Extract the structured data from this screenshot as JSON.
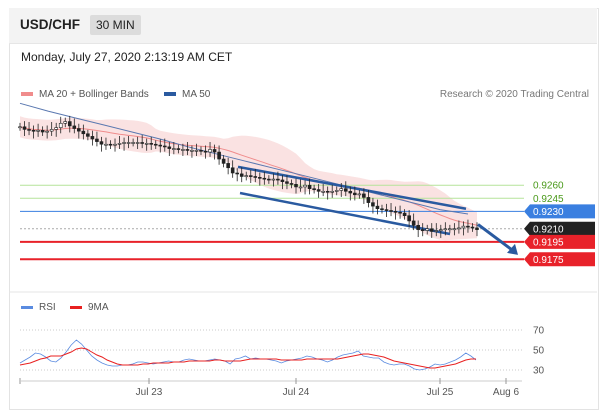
{
  "header": {
    "pair": "USD/CHF",
    "timeframe": "30 MIN"
  },
  "datetime": "Monday, July 27, 2020 2:13:19 AM CET",
  "legend": {
    "bollinger": "MA 20 + Bollinger Bands",
    "ma50": "MA 50",
    "credit": "Research © 2020 Trading Central"
  },
  "rsi_legend": {
    "rsi": "RSI",
    "ma9": "9MA"
  },
  "colors": {
    "bollinger": "#f08c8c",
    "ma50": "#2a5aa0",
    "resistance": "#4a9a1a",
    "pivot": "#3a7fe0",
    "support": "#e8222a",
    "current": "#222222",
    "rsi": "#5a8be0",
    "rsi_ma": "#e82020"
  },
  "chart_data": [
    {
      "type": "candlestick",
      "title": "USD/CHF 30 MIN",
      "x_ticks": [
        "Jul 23",
        "Jul 24",
        "Jul 25",
        "Aug 6"
      ],
      "levels": [
        {
          "label": "0.9260",
          "value": 0.926,
          "kind": "resistance"
        },
        {
          "label": "0.9245",
          "value": 0.9245,
          "kind": "resistance"
        },
        {
          "label": "0.9230",
          "value": 0.923,
          "kind": "pivot"
        },
        {
          "label": "0.9210",
          "value": 0.921,
          "kind": "current"
        },
        {
          "label": "0.9195",
          "value": 0.9195,
          "kind": "support"
        },
        {
          "label": "0.9175",
          "value": 0.9175,
          "kind": "support"
        }
      ],
      "ylim": [
        0.9165,
        0.9352
      ],
      "closes": [
        0.9327,
        0.9324,
        0.9323,
        0.9322,
        0.9323,
        0.9321,
        0.9322,
        0.9324,
        0.9326,
        0.9331,
        0.9333,
        0.9328,
        0.9325,
        0.9322,
        0.9319,
        0.9316,
        0.9313,
        0.931,
        0.9307,
        0.9307,
        0.9306,
        0.9307,
        0.9308,
        0.9309,
        0.9309,
        0.9309,
        0.9309,
        0.9308,
        0.9308,
        0.9307,
        0.9306,
        0.9305,
        0.9304,
        0.9302,
        0.9302,
        0.9301,
        0.9301,
        0.93,
        0.93,
        0.93,
        0.9299,
        0.9298,
        0.9301,
        0.9298,
        0.929,
        0.9285,
        0.928,
        0.9274,
        0.9273,
        0.927,
        0.9271,
        0.927,
        0.9269,
        0.9268,
        0.9267,
        0.9266,
        0.9267,
        0.9266,
        0.9264,
        0.9262,
        0.9261,
        0.9258,
        0.9258,
        0.926,
        0.9256,
        0.9255,
        0.9253,
        0.9253,
        0.9252,
        0.9253,
        0.9254,
        0.9256,
        0.9253,
        0.9251,
        0.9249,
        0.925,
        0.9246,
        0.924,
        0.9236,
        0.9233,
        0.9232,
        0.9231,
        0.923,
        0.9229,
        0.9228,
        0.9225,
        0.9219,
        0.9214,
        0.9209,
        0.9208,
        0.921,
        0.9207,
        0.9208,
        0.9209,
        0.921,
        0.921,
        0.921,
        0.9211,
        0.9213,
        0.9212,
        0.9211,
        0.9209
      ],
      "ma50": [
        0.9354,
        0.9345,
        0.9337,
        0.9329,
        0.9321,
        0.9313,
        0.9304,
        0.9296,
        0.9288,
        0.928,
        0.9272,
        0.9264,
        0.9256,
        0.9248,
        0.924,
        0.9232,
        0.9227
      ],
      "channel": {
        "upper": [
          0.9281,
          0.9233
        ],
        "lower": [
          0.9251,
          0.9204
        ]
      },
      "forecast_arrow": [
        0.9215,
        0.918
      ]
    },
    {
      "type": "line",
      "title": "RSI",
      "series": [
        {
          "name": "RSI",
          "values": [
            37,
            40,
            43,
            47,
            46,
            43,
            39,
            38,
            42,
            48,
            55,
            60,
            56,
            50,
            44,
            40,
            37,
            35,
            34,
            34,
            35,
            35,
            36,
            38,
            38,
            37,
            36,
            37,
            38,
            39,
            38,
            38,
            40,
            41,
            40,
            39,
            39,
            40,
            41,
            40,
            39,
            36,
            41,
            42,
            44,
            41,
            42,
            41,
            41,
            40,
            39,
            37,
            39,
            40,
            41,
            42,
            44,
            43,
            41,
            40,
            38,
            40,
            43,
            45,
            46,
            47,
            49,
            44,
            43,
            42,
            42,
            38,
            36,
            35,
            36,
            36,
            34,
            31,
            30,
            31,
            33,
            36,
            35,
            36,
            38,
            40,
            43,
            47,
            44,
            40
          ]
        },
        {
          "name": "9MA",
          "values": [
            35,
            36,
            37,
            39,
            41,
            42,
            44,
            44,
            44,
            46,
            48,
            51,
            52,
            51,
            48,
            45,
            43,
            40,
            38,
            36,
            35,
            35,
            35,
            35,
            36,
            36,
            37,
            37,
            37,
            37,
            38,
            38,
            38,
            39,
            39,
            39,
            39,
            39,
            40,
            40,
            39,
            39,
            39,
            39,
            40,
            41,
            41,
            41,
            41,
            41,
            41,
            40,
            40,
            40,
            40,
            40,
            41,
            41,
            41,
            41,
            41,
            41,
            41,
            42,
            43,
            44,
            45,
            46,
            46,
            45,
            44,
            43,
            41,
            39,
            38,
            37,
            36,
            35,
            34,
            33,
            32,
            32,
            33,
            34,
            35,
            36,
            38,
            40,
            41,
            41
          ]
        }
      ],
      "y_ticks": [
        70,
        50,
        30
      ],
      "ylim": [
        20,
        80
      ]
    }
  ]
}
